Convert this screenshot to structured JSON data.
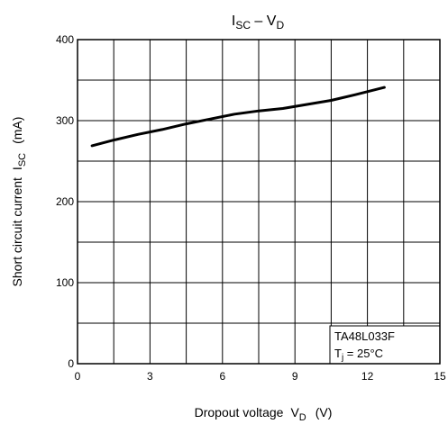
{
  "chart_data": {
    "type": "line",
    "title": {
      "main": "I",
      "main_sub": "SC",
      "sep": " – V",
      "sep_sub": "D"
    },
    "xlabel": {
      "text": "Dropout voltage",
      "sym": "V",
      "sym_sub": "D",
      "unit": "(V)"
    },
    "ylabel": {
      "text": "Short circuit current",
      "sym": "I",
      "sym_sub": "SC",
      "unit": "(mA)"
    },
    "xlim": [
      0,
      15
    ],
    "ylim": [
      0,
      400
    ],
    "x_ticks": [
      0,
      3,
      6,
      9,
      12,
      15
    ],
    "y_ticks": [
      0,
      100,
      200,
      300,
      400
    ],
    "x_grid": [
      0,
      1.5,
      3,
      4.5,
      6,
      7.5,
      9,
      10.5,
      12,
      13.5,
      15
    ],
    "y_grid": [
      0,
      50,
      100,
      150,
      200,
      250,
      300,
      350,
      400
    ],
    "grid": true,
    "series": [
      {
        "x": [
          0.6,
          1.5,
          2.5,
          3.5,
          4.5,
          5.5,
          6.5,
          7.5,
          8.5,
          9.5,
          10.5,
          11.5,
          12.7
        ],
        "y": [
          269,
          276,
          283,
          289,
          296,
          302,
          308,
          312,
          315,
          320,
          325,
          332,
          341
        ]
      }
    ],
    "annotation": {
      "line1": "TA48L033F",
      "line2_sym": "T",
      "line2_sub": "j",
      "line2_rest": " = 25°C"
    }
  }
}
